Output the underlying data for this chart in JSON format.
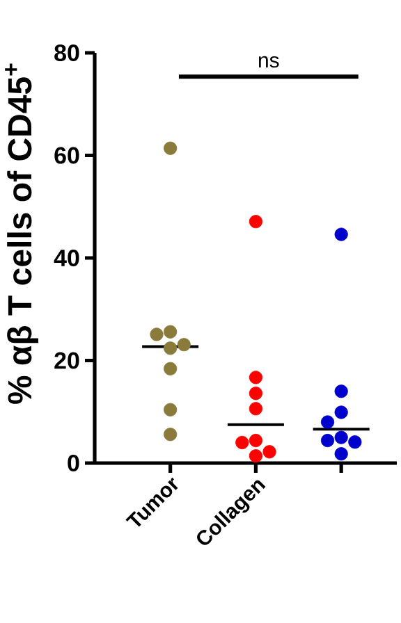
{
  "chart_data": {
    "type": "scatter",
    "categories": [
      "Tumor",
      "Collagen",
      null
    ],
    "ylabel": "% αβ T cells of  CD45$^{+}$",
    "ylim": [
      0,
      80
    ],
    "yticks": [
      0,
      20,
      40,
      60,
      80
    ],
    "marker": "circle",
    "grid": false,
    "annotations": [
      "ns"
    ],
    "series": [
      {
        "color": "#8b7b3b",
        "x": [
          "Tumor",
          "Tumor",
          "Tumor",
          "Tumor",
          "Tumor",
          "Tumor",
          "Tumor",
          "Tumor"
        ],
        "values": [
          61.4,
          25.6,
          25.1,
          23.1,
          22.4,
          18.4,
          10.4,
          5.6
        ]
      },
      {
        "color": "#ff0000",
        "x": [
          "Collagen",
          "Collagen",
          "Collagen",
          "Collagen",
          "Collagen",
          "Collagen",
          "Collagen",
          "Collagen"
        ],
        "values": [
          47.1,
          16.7,
          13.6,
          10.6,
          4.4,
          4.0,
          2.2,
          1.4
        ]
      },
      {
        "color": "#0000cc",
        "x": [
          null,
          null,
          null,
          null,
          null,
          null,
          null,
          null
        ],
        "values": [
          44.6,
          14.0,
          9.9,
          8.0,
          5.0,
          4.4,
          4.1,
          1.8
        ]
      },
      {
        "type": "box",
        "color": "#000000",
        "boxes": [
          {
            "low": 22.7,
            "q1": 22.7,
            "median": 22.7,
            "q3": 22.7,
            "high": 22.7
          },
          {
            "low": 7.5,
            "q1": 7.5,
            "median": 7.5,
            "q3": 7.5,
            "high": 7.5
          },
          {
            "low": 6.6,
            "q1": 6.6,
            "median": 6.6,
            "q3": 6.6,
            "high": 6.6
          }
        ]
      }
    ]
  }
}
